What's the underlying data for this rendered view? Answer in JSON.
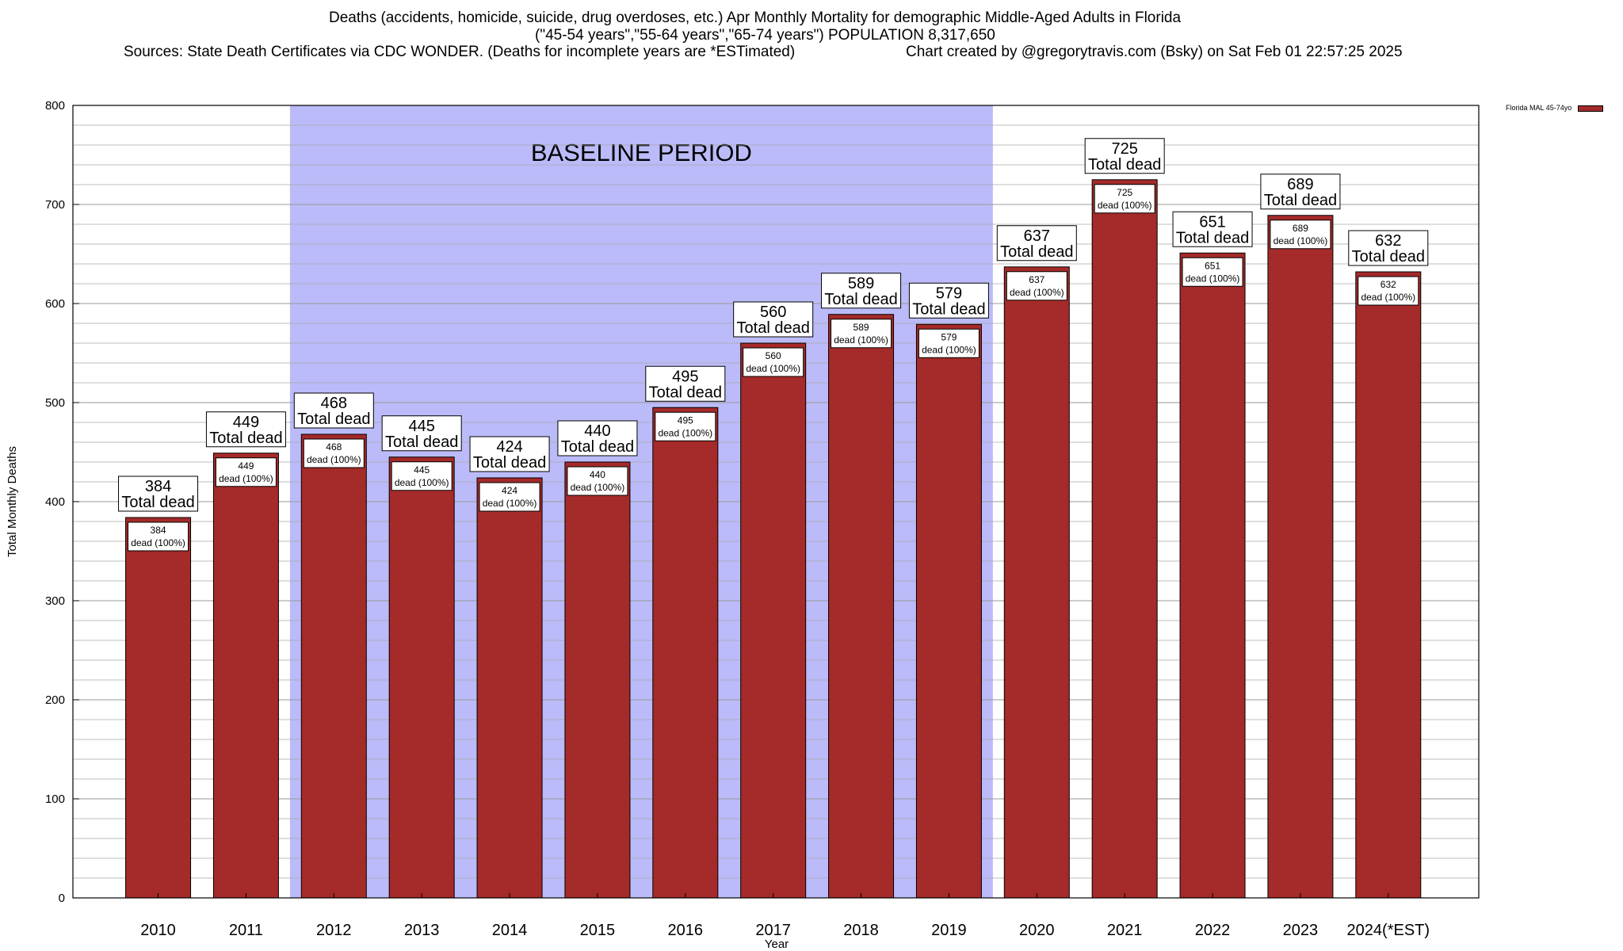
{
  "title": {
    "line1": "Deaths (accidents, homicide, suicide, drug overdoses, etc.) Apr Monthly Mortality for demographic Middle-Aged Adults in Florida",
    "line2": "(\"45-54 years\",\"55-64 years\",\"65-74 years\") POPULATION 8,317,650",
    "sources": "Sources: State Death Certificates via CDC WONDER. (Deaths for incomplete years are *ESTimated)",
    "credit": "Chart created by @gregorytravis.com (Bsky) on Sat Feb 01 22:57:25 2025"
  },
  "legend": {
    "label": "Florida MAL 45-74yo"
  },
  "colors": {
    "bar": "#A52A2A",
    "baseline_band": "#BBBBF9",
    "bar_border": "#000000"
  },
  "chart_data": {
    "type": "bar",
    "categories": [
      "2010",
      "2011",
      "2012",
      "2013",
      "2014",
      "2015",
      "2016",
      "2017",
      "2018",
      "2019",
      "2020",
      "2021",
      "2022",
      "2023",
      "2024(*EST)"
    ],
    "series": [
      {
        "name": "Florida MAL 45-74yo",
        "values": [
          384,
          449,
          468,
          445,
          424,
          440,
          495,
          560,
          589,
          579,
          637,
          725,
          651,
          689,
          632
        ]
      }
    ],
    "xlabel": "Year",
    "ylabel": "Total Monthly Deaths",
    "ylim": [
      0,
      800
    ],
    "yticks": [
      0,
      100,
      200,
      300,
      400,
      500,
      600,
      700,
      800
    ],
    "minor_grid_step": 20,
    "grid": true,
    "legend_position": "top-right outside plot",
    "bar_label_big_suffix": "Total dead",
    "bar_label_small_suffix": "dead (100%)",
    "annotation": {
      "text": "BASELINE PERIOD",
      "from": "2012",
      "to": "2019"
    }
  }
}
